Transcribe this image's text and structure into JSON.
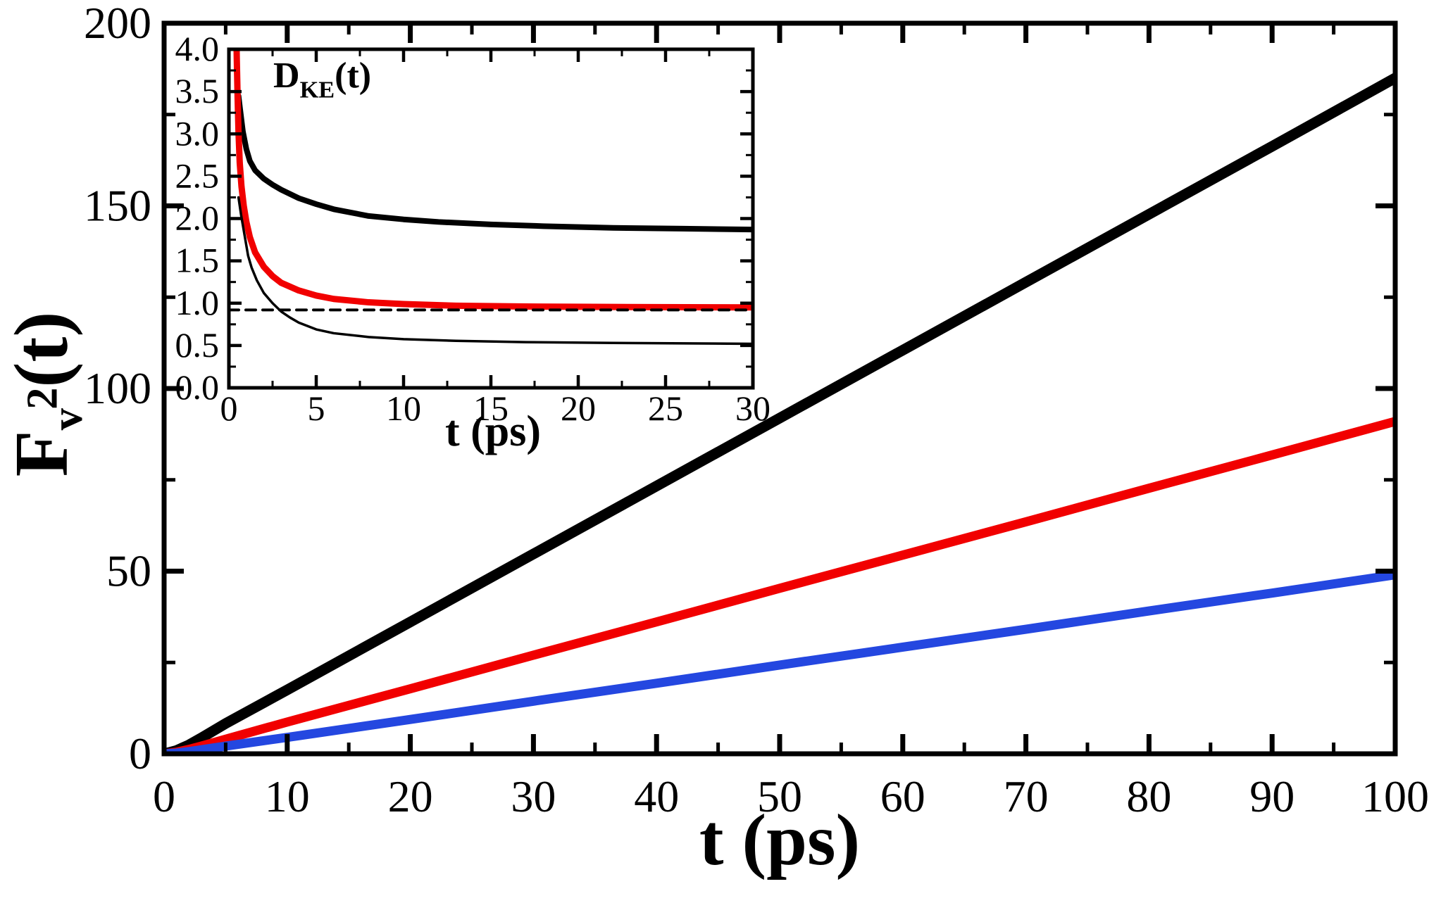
{
  "figure": {
    "background": "#ffffff"
  },
  "colors": {
    "axis": "#000000",
    "series_black": "#000000",
    "series_red": "#f10000",
    "series_blue": "#2447e0"
  },
  "chart_data": [
    {
      "id": "main",
      "type": "line",
      "title": "",
      "xlabel": "t (ps)",
      "ylabel": "F_v^2(t)",
      "ylabel_parts": {
        "base": "F",
        "sub": "v",
        "sup": "2",
        "arg": "(t)"
      },
      "xlim": [
        0,
        100
      ],
      "ylim": [
        0,
        200
      ],
      "x_tick_values": [
        0,
        10,
        20,
        30,
        40,
        50,
        60,
        70,
        80,
        90,
        100
      ],
      "x_tick_labels": [
        "0",
        "10",
        "20",
        "30",
        "40",
        "50",
        "60",
        "70",
        "80",
        "90",
        "100"
      ],
      "x_minor_step": 5,
      "y_tick_values": [
        0,
        50,
        100,
        150,
        200
      ],
      "y_tick_labels": [
        "0",
        "50",
        "100",
        "150",
        "200"
      ],
      "y_minor_step": 25,
      "grid": false,
      "legend": "none",
      "series": [
        {
          "name": "black-line",
          "color": "#000000",
          "line_width": 15,
          "x": [
            0,
            1,
            2,
            3,
            5,
            10,
            20,
            30,
            40,
            50,
            60,
            70,
            80,
            90,
            100
          ],
          "y": [
            0,
            0.9,
            2.4,
            4.3,
            8.3,
            17.5,
            36.1,
            54.7,
            73.3,
            91.9,
            110.5,
            129.1,
            147.7,
            166.3,
            185
          ]
        },
        {
          "name": "red-line",
          "color": "#f10000",
          "line_width": 13,
          "x": [
            0,
            1,
            2,
            3,
            5,
            10,
            20,
            30,
            40,
            50,
            60,
            70,
            80,
            90,
            100
          ],
          "y": [
            0,
            0.45,
            1.2,
            2.1,
            4.0,
            8.7,
            17.8,
            27.0,
            36.1,
            45.3,
            54.4,
            63.5,
            72.7,
            81.8,
            91
          ]
        },
        {
          "name": "blue-line",
          "color": "#2447e0",
          "line_width": 13,
          "x": [
            0,
            1,
            2,
            3,
            5,
            10,
            20,
            30,
            40,
            50,
            60,
            70,
            80,
            90,
            100
          ],
          "y": [
            0,
            0.2,
            0.6,
            1.1,
            2.1,
            4.5,
            9.4,
            14.4,
            19.3,
            24.3,
            29.2,
            34.1,
            39.1,
            44.0,
            49
          ]
        }
      ]
    },
    {
      "id": "inset",
      "type": "line",
      "title": "D_KE(t)",
      "title_parts": {
        "base": "D",
        "sub": "KE",
        "arg": "(t)"
      },
      "xlabel": "t (ps)",
      "ylabel": "",
      "xlim": [
        0,
        30
      ],
      "ylim": [
        0,
        4
      ],
      "x_tick_values": [
        0,
        5,
        10,
        15,
        20,
        25,
        30
      ],
      "x_tick_labels": [
        "0",
        "5",
        "10",
        "15",
        "20",
        "25",
        "30"
      ],
      "x_minor_step": 2.5,
      "y_tick_values": [
        0,
        0.5,
        1,
        1.5,
        2,
        2.5,
        3,
        3.5,
        4
      ],
      "y_tick_labels": [
        "0.0",
        "0.5",
        "1.0",
        "1.5",
        "2.0",
        "2.5",
        "3.0",
        "3.5",
        "4.0"
      ],
      "y_minor_step": 0.25,
      "grid": false,
      "legend": "none",
      "series": [
        {
          "name": "thick-black-curve",
          "color": "#000000",
          "line_width": 8,
          "x": [
            0.55,
            0.65,
            0.8,
            1.0,
            1.2,
            1.5,
            2,
            2.5,
            3,
            4,
            5,
            6,
            8,
            10,
            12,
            15,
            18,
            22,
            26,
            30
          ],
          "y": [
            3.45,
            3.28,
            3.03,
            2.82,
            2.68,
            2.57,
            2.47,
            2.4,
            2.34,
            2.24,
            2.17,
            2.11,
            2.03,
            1.99,
            1.96,
            1.93,
            1.91,
            1.89,
            1.88,
            1.87
          ]
        },
        {
          "name": "red-curve",
          "color": "#f10000",
          "line_width": 9,
          "x": [
            0.42,
            0.45,
            0.5,
            0.55,
            0.62,
            0.72,
            0.85,
            1.0,
            1.2,
            1.5,
            2,
            2.5,
            3,
            4,
            5,
            6,
            8,
            10,
            13,
            17,
            22,
            30
          ],
          "y": [
            4.3,
            3.9,
            3.42,
            3.02,
            2.66,
            2.38,
            2.15,
            1.96,
            1.78,
            1.6,
            1.43,
            1.32,
            1.24,
            1.15,
            1.09,
            1.05,
            1.01,
            0.99,
            0.97,
            0.96,
            0.955,
            0.95
          ]
        },
        {
          "name": "thin-black-curve",
          "color": "#000000",
          "line_width": 3.5,
          "x": [
            0.55,
            0.7,
            0.9,
            1.1,
            1.3,
            1.6,
            2,
            2.5,
            3,
            3.5,
            4,
            5,
            6,
            8,
            10,
            13,
            17,
            22,
            30
          ],
          "y": [
            2.25,
            2.04,
            1.8,
            1.56,
            1.42,
            1.27,
            1.12,
            1.0,
            0.9,
            0.83,
            0.77,
            0.69,
            0.645,
            0.6,
            0.575,
            0.555,
            0.54,
            0.53,
            0.52
          ]
        },
        {
          "name": "dashed-asymptote",
          "color": "#000000",
          "line_width": 4,
          "dash": [
            14,
            10
          ],
          "x": [
            0,
            30
          ],
          "y": [
            0.92,
            0.92
          ]
        }
      ]
    }
  ]
}
